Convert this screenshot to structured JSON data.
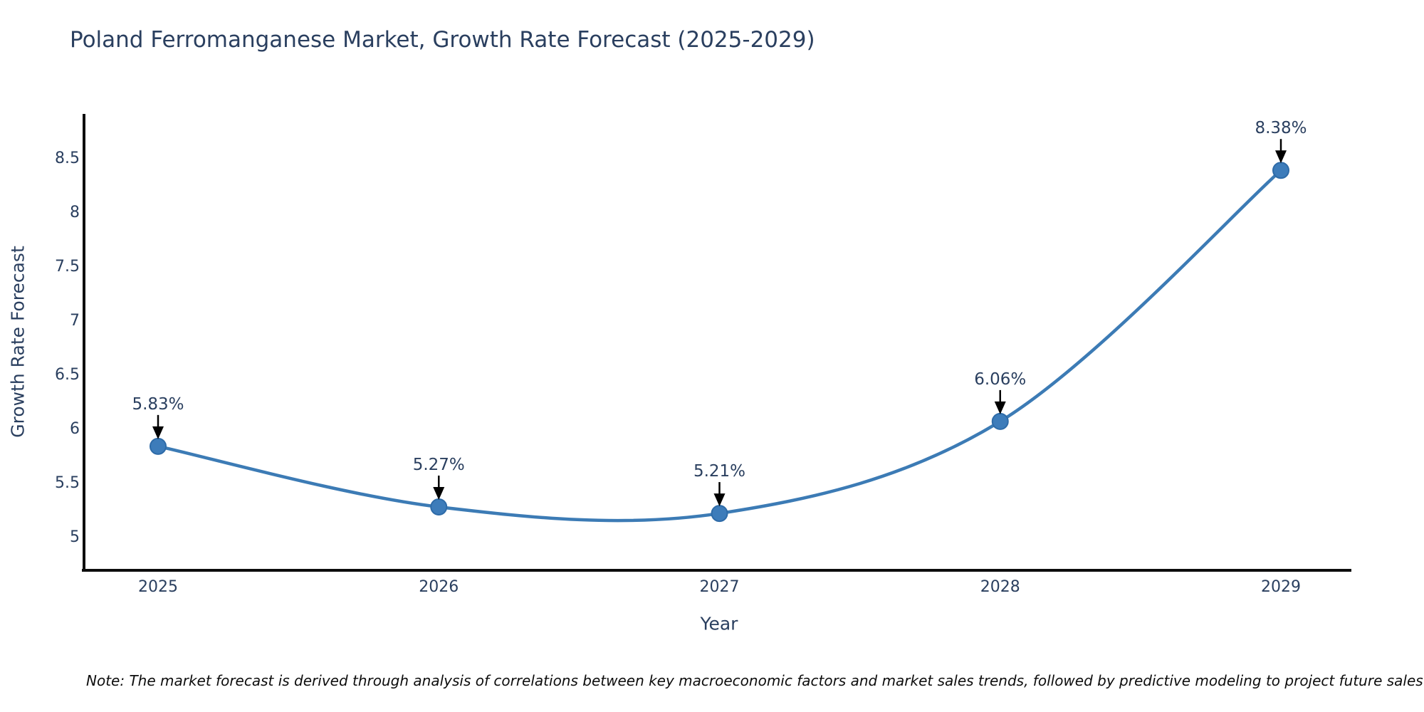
{
  "note": "Note: The market forecast is derived through analysis of correlations between key macroeconomic factors and market sales trends, followed by predictive modeling to project future sales",
  "chart_data": {
    "type": "line",
    "title": "Poland Ferromanganese Market, Growth Rate Forecast (2025-2029)",
    "xlabel": "Year",
    "ylabel": "Growth Rate Forecast",
    "x": [
      2025,
      2026,
      2027,
      2028,
      2029
    ],
    "series": [
      {
        "name": "Growth Rate Forecast",
        "values": [
          5.83,
          5.27,
          5.21,
          6.06,
          8.38
        ]
      }
    ],
    "point_labels": [
      "5.83%",
      "5.27%",
      "5.21%",
      "6.06%",
      "8.38%"
    ],
    "yticks": [
      5,
      5.5,
      6,
      6.5,
      7,
      7.5,
      8,
      8.5
    ],
    "ylim": [
      4.7,
      8.9
    ],
    "line_shape": "spline",
    "grid": false,
    "legend": "none",
    "colors": {
      "line": "#3c7bb5",
      "marker_fill": "#3d7cba",
      "marker_edge": "#2e6ba8",
      "axis_line": "#0d0d0d",
      "text": "#2a3f5f",
      "annotation_text": "#2a3f5f",
      "annotation_arrow": "#000000"
    }
  }
}
